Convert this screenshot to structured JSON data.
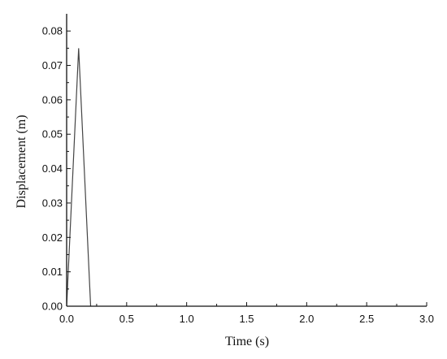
{
  "chart_data": {
    "type": "line",
    "xlabel": "Time (s)",
    "ylabel": "Displacement (m)",
    "xlim": [
      0.0,
      3.0
    ],
    "ylim": [
      0.0,
      0.085
    ],
    "x_ticks": [
      "0.0",
      "0.5",
      "1.0",
      "1.5",
      "2.0",
      "2.5",
      "3.0"
    ],
    "y_ticks": [
      "0.00",
      "0.01",
      "0.02",
      "0.03",
      "0.04",
      "0.05",
      "0.06",
      "0.07",
      "0.08"
    ],
    "grid": false,
    "series": [
      {
        "x": [
          0.0,
          0.1,
          0.2
        ],
        "y": [
          0.0,
          0.075,
          0.0
        ]
      }
    ],
    "colors": {
      "line": "#444444",
      "axis": "#111111"
    }
  }
}
